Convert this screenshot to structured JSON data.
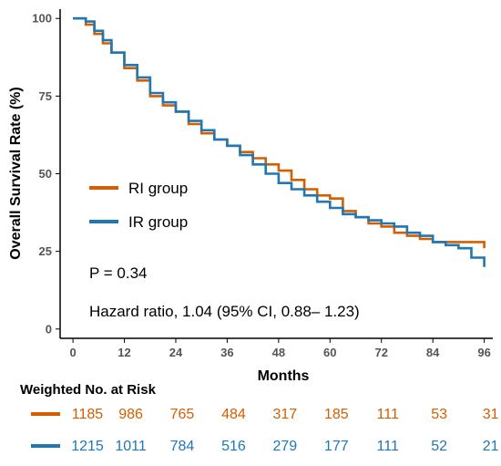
{
  "chart_data": {
    "type": "line",
    "xlabel": "Months",
    "ylabel": "Overall Survival Rate (%)",
    "xlim": [
      -3,
      98
    ],
    "ylim": [
      -3,
      103
    ],
    "x_ticks": [
      0,
      12,
      24,
      36,
      48,
      60,
      72,
      84,
      96
    ],
    "y_ticks": [
      0,
      25,
      50,
      75,
      100
    ],
    "grid": false,
    "legend_position": "middle-left",
    "series": [
      {
        "name": "RI group",
        "color": "#D55E00",
        "x": [
          0,
          1,
          3,
          5,
          7,
          9,
          12,
          15,
          18,
          21,
          24,
          27,
          30,
          33,
          36,
          39,
          42,
          45,
          48,
          51,
          54,
          57,
          60,
          63,
          66,
          69,
          72,
          75,
          78,
          81,
          84,
          87,
          90,
          93,
          96
        ],
        "y": [
          100,
          100,
          98,
          95,
          92,
          89,
          84,
          80,
          75,
          72,
          70,
          66,
          63,
          61,
          59,
          57,
          55,
          53,
          51,
          48,
          45,
          43,
          42,
          38,
          36,
          34,
          33,
          31,
          30,
          29,
          28,
          28,
          28,
          28,
          26
        ]
      },
      {
        "name": "IR group",
        "color": "#1F77B4",
        "x": [
          0,
          1,
          3,
          5,
          7,
          9,
          12,
          15,
          18,
          21,
          24,
          27,
          30,
          33,
          36,
          39,
          42,
          45,
          48,
          51,
          54,
          57,
          60,
          63,
          66,
          69,
          72,
          75,
          78,
          81,
          84,
          87,
          90,
          93,
          96
        ],
        "y": [
          100,
          100,
          99,
          96,
          93,
          89,
          85,
          81,
          76,
          73,
          70,
          67,
          64,
          61,
          59,
          56,
          53,
          50,
          47,
          45,
          43,
          41,
          39,
          37,
          36,
          35,
          34,
          33,
          31,
          30,
          28,
          27,
          26,
          23,
          20
        ]
      }
    ],
    "annotations": {
      "p_value": "P = 0.34",
      "hazard_ratio": "Hazard ratio, 1.04 (95% CI, 0.88– 1.23)"
    },
    "risk_table": {
      "title": "Weighted No. at Risk",
      "rows": [
        {
          "name": "RI group",
          "color": "#D55E00",
          "values": [
            "1185",
            "986",
            "765",
            "484",
            "317",
            "185",
            "111",
            "53",
            "31"
          ]
        },
        {
          "name": "IR group",
          "color": "#1F77B4",
          "values": [
            "1215",
            "1011",
            "784",
            "516",
            "279",
            "177",
            "111",
            "52",
            "21"
          ]
        }
      ]
    }
  }
}
